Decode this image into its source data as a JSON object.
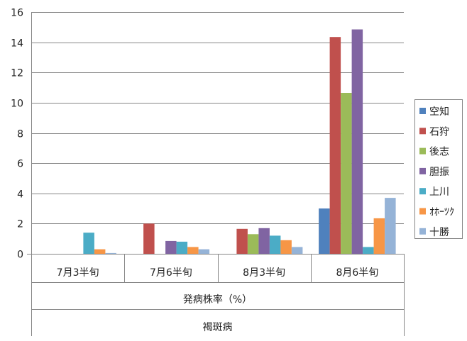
{
  "chart_data": {
    "type": "bar",
    "categories": [
      "7月3半旬",
      "7月6半旬",
      "8月3半旬",
      "8月6半旬"
    ],
    "series": [
      {
        "name": "空知",
        "color": "#4F81BD",
        "values": [
          0,
          0,
          0,
          3.0
        ]
      },
      {
        "name": "石狩",
        "color": "#C0504D",
        "values": [
          0,
          2.0,
          1.65,
          14.35
        ]
      },
      {
        "name": "後志",
        "color": "#9BBB59",
        "values": [
          0,
          0,
          1.3,
          10.65
        ]
      },
      {
        "name": "胆振",
        "color": "#8064A2",
        "values": [
          0,
          0.85,
          1.7,
          14.85
        ]
      },
      {
        "name": "上川",
        "color": "#4BACC6",
        "values": [
          1.4,
          0.8,
          1.2,
          0.45
        ]
      },
      {
        "name": "ｵﾎｰﾂｸ",
        "color": "#F79646",
        "values": [
          0.3,
          0.45,
          0.9,
          2.35
        ]
      },
      {
        "name": "十勝",
        "color": "#95B3D7",
        "values": [
          0.05,
          0.3,
          0.45,
          3.7
        ]
      }
    ],
    "xlabel": "発病株率（%）",
    "xlabel2": "褐斑病",
    "ylim": [
      0,
      16
    ],
    "yticks": [
      "0",
      "2",
      "4",
      "6",
      "8",
      "10",
      "12",
      "14",
      "16"
    ],
    "grid": true,
    "legend": "right"
  }
}
